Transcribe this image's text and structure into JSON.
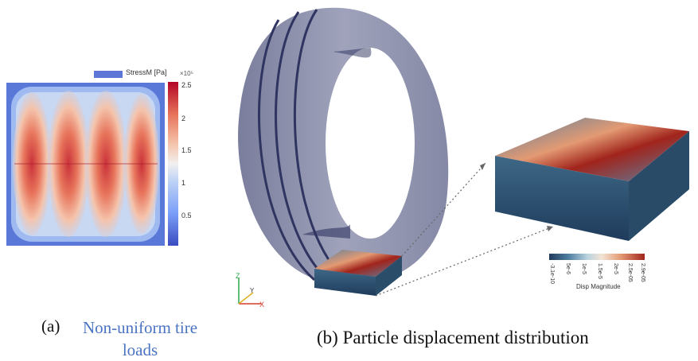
{
  "panel_a": {
    "legend_label": "StressM [Pa]",
    "colorbar_exponent": "×10⁵",
    "colorbar_ticks": [
      "2.5",
      "2",
      "1.5",
      "1",
      "0.5"
    ],
    "caption_label": "(a)",
    "caption_text": "Non-uniform tire loads",
    "colors": {
      "low": "#3b4cc0",
      "high": "#b40426",
      "caption": "#4a73c4"
    }
  },
  "panel_b": {
    "colorbar_ticks": [
      "-3.1e-10",
      "5e-6",
      "1e-5",
      "1.5e-5",
      "2e-5",
      "2.5e-05",
      "2.9e-05"
    ],
    "colorbar_title": "Disp Magnitude",
    "axes_labels": [
      "Z",
      "Y",
      "X"
    ],
    "caption": "(b)  Particle displacement distribution",
    "colors": {
      "tire": "#6e7394",
      "tire_grooves": "#2f3460",
      "particle_low": "#1f3b5c",
      "particle_high": "#a1241c"
    }
  }
}
